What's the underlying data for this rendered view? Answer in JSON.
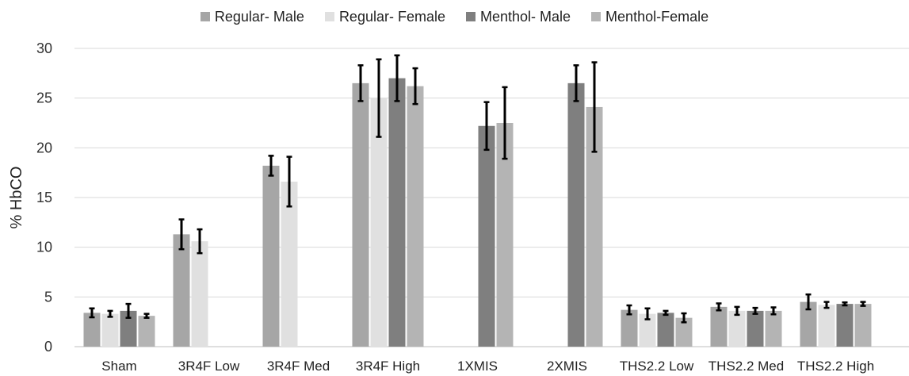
{
  "chart_data": {
    "type": "bar",
    "title": "",
    "xlabel": "",
    "ylabel": "% HbCO",
    "ylim": [
      0,
      30
    ],
    "yticks": [
      0,
      5,
      10,
      15,
      20,
      25,
      30
    ],
    "grid": true,
    "legend_position": "top",
    "categories": [
      "Sham",
      "3R4F Low",
      "3R4F Med",
      "3R4F High",
      "1XMIS",
      "2XMIS",
      "THS2.2 Low",
      "THS2.2 Med",
      "THS2.2 High"
    ],
    "series": [
      {
        "name": "Regular- Male",
        "color": "#a6a6a6",
        "values": [
          3.4,
          11.3,
          18.2,
          26.5,
          null,
          null,
          3.7,
          4.0,
          4.5
        ],
        "errors": [
          0.45,
          1.5,
          1.0,
          1.8,
          null,
          null,
          0.45,
          0.35,
          0.75
        ]
      },
      {
        "name": "Regular- Female",
        "color": "#e0e0e0",
        "values": [
          3.3,
          10.6,
          16.6,
          25.0,
          null,
          null,
          3.3,
          3.6,
          4.2
        ],
        "errors": [
          0.3,
          1.2,
          2.5,
          3.9,
          null,
          null,
          0.55,
          0.4,
          0.3
        ]
      },
      {
        "name": "Menthol- Male",
        "color": "#7f7f7f",
        "values": [
          3.6,
          null,
          null,
          27.0,
          22.2,
          26.5,
          3.4,
          3.6,
          4.3
        ],
        "errors": [
          0.7,
          null,
          null,
          2.3,
          2.4,
          1.8,
          0.2,
          0.3,
          0.15
        ]
      },
      {
        "name": "Menthol-Female",
        "color": "#b4b4b4",
        "values": [
          3.1,
          null,
          null,
          26.2,
          22.5,
          24.1,
          2.9,
          3.6,
          4.3
        ],
        "errors": [
          0.2,
          null,
          null,
          1.8,
          3.6,
          4.5,
          0.45,
          0.35,
          0.2
        ]
      }
    ]
  }
}
